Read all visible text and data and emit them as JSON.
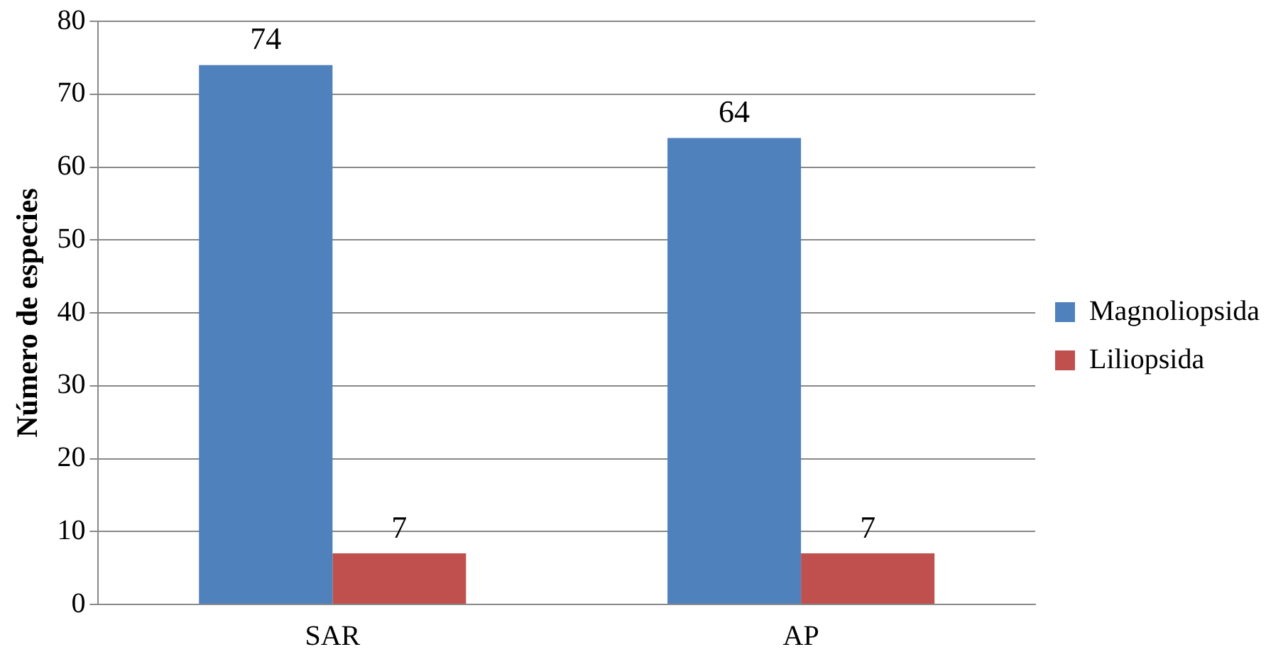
{
  "chart_data": {
    "type": "bar",
    "ylabel": "Número de especies",
    "categories": [
      "SAR",
      "AP"
    ],
    "series": [
      {
        "name": "Magnoliopsida",
        "color": "#4f81bd",
        "values": [
          74,
          64
        ]
      },
      {
        "name": "Liliopsida",
        "color": "#c0504d",
        "values": [
          7,
          7
        ]
      }
    ],
    "ylim": [
      0,
      80
    ],
    "yticks": [
      0,
      10,
      20,
      30,
      40,
      50,
      60,
      70,
      80
    ],
    "grid": "y",
    "legend": "right",
    "data_labels": true
  }
}
